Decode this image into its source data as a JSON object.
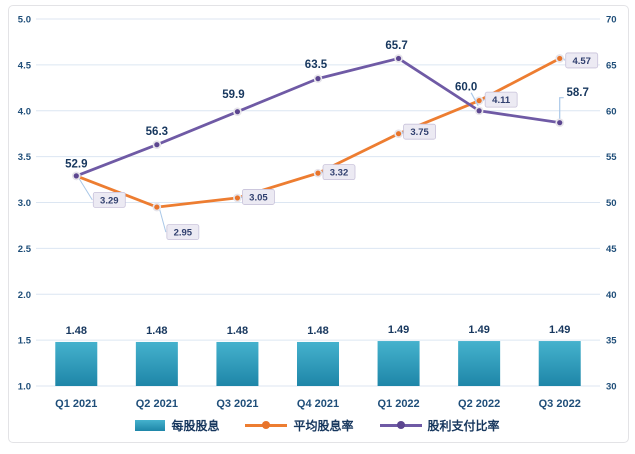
{
  "chart_data": {
    "type": "bar+line combo",
    "categories": [
      "Q1 2021",
      "Q2 2021",
      "Q3 2021",
      "Q4 2021",
      "Q1 2022",
      "Q2 2022",
      "Q3 2022"
    ],
    "series": [
      {
        "name": "每股股息",
        "type": "bar",
        "axis": "left",
        "values": [
          1.48,
          1.48,
          1.48,
          1.48,
          1.49,
          1.49,
          1.49
        ],
        "decimals": 2,
        "color": "#2B9DBE",
        "gradient_top": "#45B2CD",
        "gradient_bottom": "#1E86A8",
        "label_style": "bold-above"
      },
      {
        "name": "平均股息率",
        "type": "line",
        "axis": "left",
        "values": [
          3.29,
          2.95,
          3.05,
          3.32,
          3.75,
          4.11,
          4.57
        ],
        "decimals": 2,
        "color": "#ED7D31",
        "marker_color": "#E8742A",
        "label_style": "callout-box"
      },
      {
        "name": "股利支付比率",
        "type": "line",
        "axis": "right",
        "values": [
          52.9,
          56.3,
          59.9,
          63.5,
          65.7,
          60.0,
          58.7
        ],
        "decimals": 1,
        "color": "#6F5AA5",
        "marker_color": "#5C4690",
        "label_style": "bold-navy"
      }
    ],
    "left_axis": {
      "min": 1.0,
      "max": 5.0,
      "step": 0.5,
      "ticks": [
        "5.0",
        "4.5",
        "4.0",
        "3.5",
        "3.0",
        "2.5",
        "2.0",
        "1.5",
        "1.0"
      ]
    },
    "right_axis": {
      "min": 30,
      "max": 70,
      "step": 5,
      "ticks": [
        "70",
        "65",
        "60",
        "55",
        "50",
        "45",
        "40",
        "35",
        "30"
      ]
    },
    "grid": true,
    "legend_position": "bottom",
    "style_colors": {
      "grid_line": "#DCE6F2",
      "leader_line": "#A9C7E7",
      "callout_fill": "#ECEAF3",
      "callout_border": "#C8C2DA",
      "marker_ring": "#E6E4EA",
      "tick_text": "#1F4E79",
      "data_label_text": "#17375E"
    }
  }
}
